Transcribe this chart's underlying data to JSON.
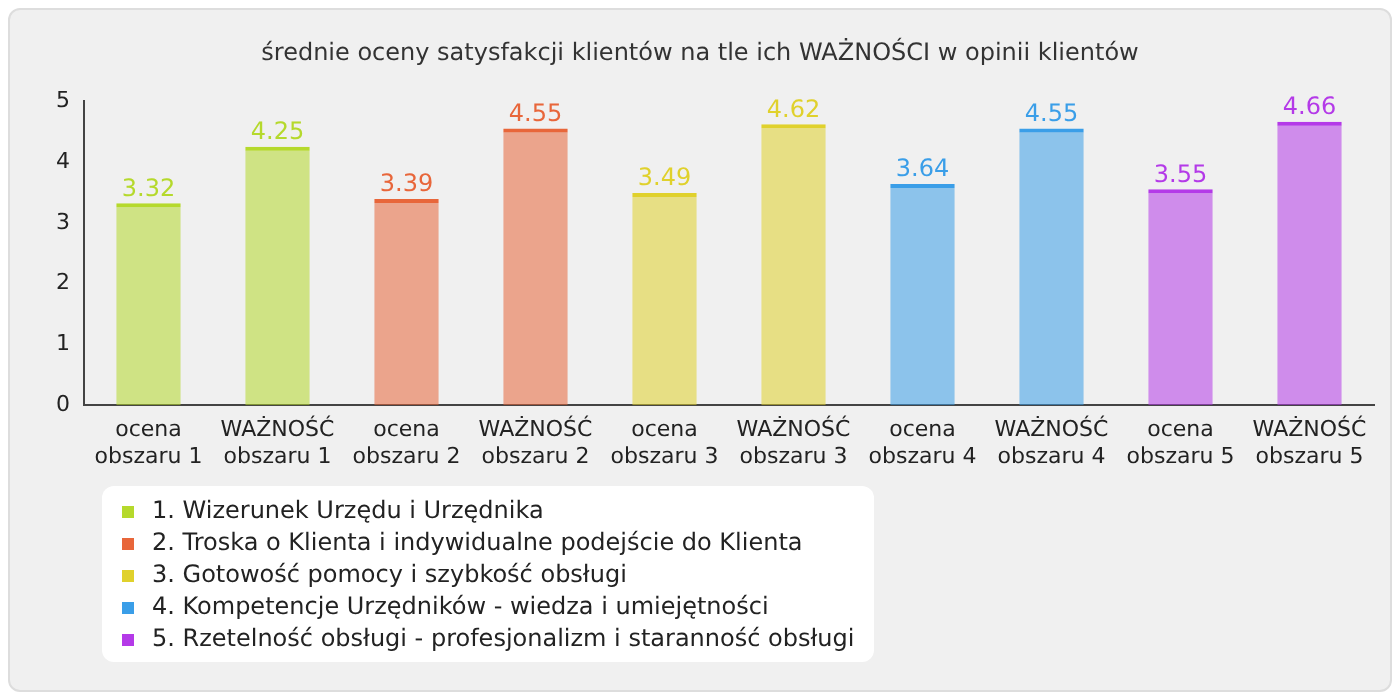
{
  "chart_data": {
    "type": "bar",
    "title": "średnie oceny satysfakcji klientów na tle ich WAŻNOŚCI w opinii klientów",
    "categories": [
      "ocena obszaru 1",
      "WAŻNOŚĆ obszaru 1",
      "ocena obszaru 2",
      "WAŻNOŚĆ obszaru 2",
      "ocena obszaru 3",
      "WAŻNOŚĆ obszaru 3",
      "ocena obszaru 4",
      "WAŻNOŚĆ obszaru 4",
      "ocena obszaru 5",
      "WAŻNOŚĆ obszaru 5"
    ],
    "series": [
      {
        "name": "1. Wizerunek Urzędu i Urzędnika",
        "color": "#b5d92c",
        "values": [
          3.32,
          4.25,
          null,
          null,
          null,
          null,
          null,
          null,
          null,
          null
        ]
      },
      {
        "name": "2. Troska o Klienta i indywidualne podejście do Klienta",
        "color": "#e8663a",
        "values": [
          null,
          null,
          3.39,
          4.55,
          null,
          null,
          null,
          null,
          null,
          null
        ]
      },
      {
        "name": "3. Gotowość pomocy i szybkość obsługi",
        "color": "#e0d12c",
        "values": [
          null,
          null,
          null,
          null,
          3.49,
          4.62,
          null,
          null,
          null,
          null
        ]
      },
      {
        "name": "4. Kompetencje Urzędników - wiedza i umiejętności",
        "color": "#3a9ee8",
        "values": [
          null,
          null,
          null,
          null,
          null,
          null,
          3.64,
          4.55,
          null,
          null
        ]
      },
      {
        "name": "5. Rzetelność obsługi - profesjonalizm i staranność obsługi",
        "color": "#b43ae8",
        "values": [
          null,
          null,
          null,
          null,
          null,
          null,
          null,
          null,
          3.55,
          4.66
        ]
      }
    ],
    "ylim": [
      0,
      5
    ],
    "yticks": [
      0,
      1,
      2,
      3,
      4,
      5
    ],
    "grid": false,
    "legend": "bottom left",
    "data_labels": true
  }
}
